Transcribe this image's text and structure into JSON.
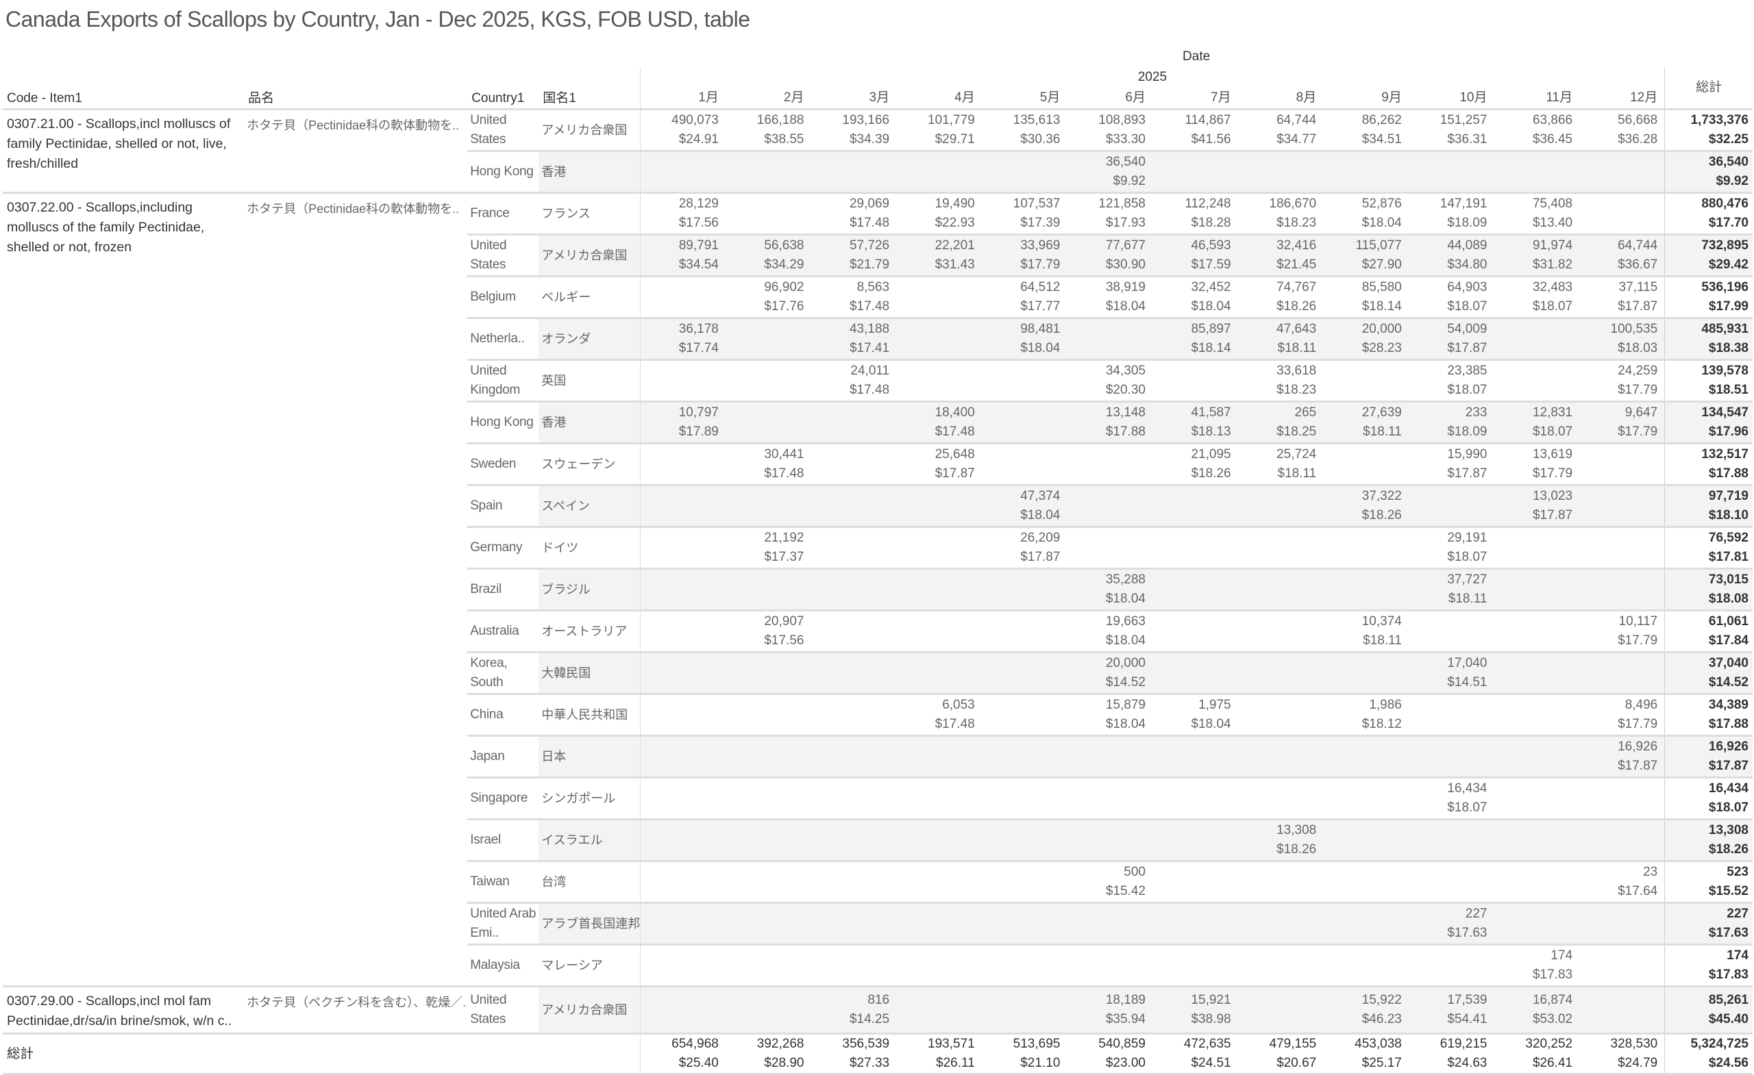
{
  "title": "Canada Exports of Scallops by Country, Jan - Dec 2025, KGS, FOB USD, table",
  "header": {
    "date_label": "Date",
    "year": "2025",
    "code_label": "Code - Item1",
    "name_ja_label": "品名",
    "country_label": "Country1",
    "country_ja_label": "国名1",
    "months": [
      "1月",
      "2月",
      "3月",
      "4月",
      "5月",
      "6月",
      "7月",
      "8月",
      "9月",
      "10月",
      "11月",
      "12月"
    ],
    "total_label": "総計"
  },
  "colors": {
    "row_shade": "#f3f3f3",
    "divider": "#dddddd",
    "text": "#666666",
    "total_text": "#333333"
  },
  "items": [
    {
      "code": "0307.21.00 - Scallops,incl molluscs of family Pectinidae, shelled or not, live, fresh/chilled",
      "name_ja": "ホタテ貝（Pectinidae科の軟体動物を..",
      "rows": [
        {
          "country": "United States",
          "country_ja": "アメリカ合衆国",
          "months": [
            [
              "490,073",
              "$24.91"
            ],
            [
              "166,188",
              "$38.55"
            ],
            [
              "193,166",
              "$34.39"
            ],
            [
              "101,779",
              "$29.71"
            ],
            [
              "135,613",
              "$30.36"
            ],
            [
              "108,893",
              "$33.30"
            ],
            [
              "114,867",
              "$41.56"
            ],
            [
              "64,744",
              "$34.77"
            ],
            [
              "86,262",
              "$34.51"
            ],
            [
              "151,257",
              "$36.31"
            ],
            [
              "63,866",
              "$36.45"
            ],
            [
              "56,668",
              "$36.28"
            ]
          ],
          "total": [
            "1,733,376",
            "$32.25"
          ]
        },
        {
          "country": "Hong Kong",
          "country_ja": "香港",
          "months": [
            null,
            null,
            null,
            null,
            null,
            [
              "36,540",
              "$9.92"
            ],
            null,
            null,
            null,
            null,
            null,
            null
          ],
          "total": [
            "36,540",
            "$9.92"
          ]
        }
      ]
    },
    {
      "code": "0307.22.00 - Scallops,including molluscs of the family Pectinidae, shelled or not, frozen",
      "name_ja": "ホタテ貝（Pectinidae科の軟体動物を..",
      "rows": [
        {
          "country": "France",
          "country_ja": "フランス",
          "months": [
            [
              "28,129",
              "$17.56"
            ],
            null,
            [
              "29,069",
              "$17.48"
            ],
            [
              "19,490",
              "$22.93"
            ],
            [
              "107,537",
              "$17.39"
            ],
            [
              "121,858",
              "$17.93"
            ],
            [
              "112,248",
              "$18.28"
            ],
            [
              "186,670",
              "$18.23"
            ],
            [
              "52,876",
              "$18.04"
            ],
            [
              "147,191",
              "$18.09"
            ],
            [
              "75,408",
              "$13.40"
            ],
            null
          ],
          "total": [
            "880,476",
            "$17.70"
          ]
        },
        {
          "country": "United States",
          "country_ja": "アメリカ合衆国",
          "months": [
            [
              "89,791",
              "$34.54"
            ],
            [
              "56,638",
              "$34.29"
            ],
            [
              "57,726",
              "$21.79"
            ],
            [
              "22,201",
              "$31.43"
            ],
            [
              "33,969",
              "$17.79"
            ],
            [
              "77,677",
              "$30.90"
            ],
            [
              "46,593",
              "$17.59"
            ],
            [
              "32,416",
              "$21.45"
            ],
            [
              "115,077",
              "$27.90"
            ],
            [
              "44,089",
              "$34.80"
            ],
            [
              "91,974",
              "$31.82"
            ],
            [
              "64,744",
              "$36.67"
            ]
          ],
          "total": [
            "732,895",
            "$29.42"
          ]
        },
        {
          "country": "Belgium",
          "country_ja": "ベルギー",
          "months": [
            null,
            [
              "96,902",
              "$17.76"
            ],
            [
              "8,563",
              "$17.48"
            ],
            null,
            [
              "64,512",
              "$17.77"
            ],
            [
              "38,919",
              "$18.04"
            ],
            [
              "32,452",
              "$18.04"
            ],
            [
              "74,767",
              "$18.26"
            ],
            [
              "85,580",
              "$18.14"
            ],
            [
              "64,903",
              "$18.07"
            ],
            [
              "32,483",
              "$18.07"
            ],
            [
              "37,115",
              "$17.87"
            ]
          ],
          "total": [
            "536,196",
            "$17.99"
          ]
        },
        {
          "country": "Netherla..",
          "country_ja": "オランダ",
          "months": [
            [
              "36,178",
              "$17.74"
            ],
            null,
            [
              "43,188",
              "$17.41"
            ],
            null,
            [
              "98,481",
              "$18.04"
            ],
            null,
            [
              "85,897",
              "$18.14"
            ],
            [
              "47,643",
              "$18.11"
            ],
            [
              "20,000",
              "$28.23"
            ],
            [
              "54,009",
              "$17.87"
            ],
            null,
            [
              "100,535",
              "$18.03"
            ]
          ],
          "total": [
            "485,931",
            "$18.38"
          ]
        },
        {
          "country": "United Kingdom",
          "country_ja": "英国",
          "months": [
            null,
            null,
            [
              "24,011",
              "$17.48"
            ],
            null,
            null,
            [
              "34,305",
              "$20.30"
            ],
            null,
            [
              "33,618",
              "$18.23"
            ],
            null,
            [
              "23,385",
              "$18.07"
            ],
            null,
            [
              "24,259",
              "$17.79"
            ]
          ],
          "total": [
            "139,578",
            "$18.51"
          ]
        },
        {
          "country": "Hong Kong",
          "country_ja": "香港",
          "months": [
            [
              "10,797",
              "$17.89"
            ],
            null,
            null,
            [
              "18,400",
              "$17.48"
            ],
            null,
            [
              "13,148",
              "$17.88"
            ],
            [
              "41,587",
              "$18.13"
            ],
            [
              "265",
              "$18.25"
            ],
            [
              "27,639",
              "$18.11"
            ],
            [
              "233",
              "$18.09"
            ],
            [
              "12,831",
              "$18.07"
            ],
            [
              "9,647",
              "$17.79"
            ]
          ],
          "total": [
            "134,547",
            "$17.96"
          ]
        },
        {
          "country": "Sweden",
          "country_ja": "スウェーデン",
          "months": [
            null,
            [
              "30,441",
              "$17.48"
            ],
            null,
            [
              "25,648",
              "$17.87"
            ],
            null,
            null,
            [
              "21,095",
              "$18.26"
            ],
            [
              "25,724",
              "$18.11"
            ],
            null,
            [
              "15,990",
              "$17.87"
            ],
            [
              "13,619",
              "$17.79"
            ],
            null
          ],
          "total": [
            "132,517",
            "$17.88"
          ]
        },
        {
          "country": "Spain",
          "country_ja": "スペイン",
          "months": [
            null,
            null,
            null,
            null,
            [
              "47,374",
              "$18.04"
            ],
            null,
            null,
            null,
            [
              "37,322",
              "$18.26"
            ],
            null,
            [
              "13,023",
              "$17.87"
            ],
            null
          ],
          "total": [
            "97,719",
            "$18.10"
          ]
        },
        {
          "country": "Germany",
          "country_ja": "ドイツ",
          "months": [
            null,
            [
              "21,192",
              "$17.37"
            ],
            null,
            null,
            [
              "26,209",
              "$17.87"
            ],
            null,
            null,
            null,
            null,
            [
              "29,191",
              "$18.07"
            ],
            null,
            null
          ],
          "total": [
            "76,592",
            "$17.81"
          ]
        },
        {
          "country": "Brazil",
          "country_ja": "ブラジル",
          "months": [
            null,
            null,
            null,
            null,
            null,
            [
              "35,288",
              "$18.04"
            ],
            null,
            null,
            null,
            [
              "37,727",
              "$18.11"
            ],
            null,
            null
          ],
          "total": [
            "73,015",
            "$18.08"
          ]
        },
        {
          "country": "Australia",
          "country_ja": "オーストラリア",
          "months": [
            null,
            [
              "20,907",
              "$17.56"
            ],
            null,
            null,
            null,
            [
              "19,663",
              "$18.04"
            ],
            null,
            null,
            [
              "10,374",
              "$18.11"
            ],
            null,
            null,
            [
              "10,117",
              "$17.79"
            ]
          ],
          "total": [
            "61,061",
            "$17.84"
          ]
        },
        {
          "country": "Korea, South",
          "country_ja": "大韓民国",
          "months": [
            null,
            null,
            null,
            null,
            null,
            [
              "20,000",
              "$14.52"
            ],
            null,
            null,
            null,
            [
              "17,040",
              "$14.51"
            ],
            null,
            null
          ],
          "total": [
            "37,040",
            "$14.52"
          ]
        },
        {
          "country": "China",
          "country_ja": "中華人民共和国",
          "months": [
            null,
            null,
            null,
            [
              "6,053",
              "$17.48"
            ],
            null,
            [
              "15,879",
              "$18.04"
            ],
            [
              "1,975",
              "$18.04"
            ],
            null,
            [
              "1,986",
              "$18.12"
            ],
            null,
            null,
            [
              "8,496",
              "$17.79"
            ]
          ],
          "total": [
            "34,389",
            "$17.88"
          ]
        },
        {
          "country": "Japan",
          "country_ja": "日本",
          "months": [
            null,
            null,
            null,
            null,
            null,
            null,
            null,
            null,
            null,
            null,
            null,
            [
              "16,926",
              "$17.87"
            ]
          ],
          "total": [
            "16,926",
            "$17.87"
          ]
        },
        {
          "country": "Singapore",
          "country_ja": "シンガポール",
          "months": [
            null,
            null,
            null,
            null,
            null,
            null,
            null,
            null,
            null,
            [
              "16,434",
              "$18.07"
            ],
            null,
            null
          ],
          "total": [
            "16,434",
            "$18.07"
          ]
        },
        {
          "country": "Israel",
          "country_ja": "イスラエル",
          "months": [
            null,
            null,
            null,
            null,
            null,
            null,
            null,
            [
              "13,308",
              "$18.26"
            ],
            null,
            null,
            null,
            null
          ],
          "total": [
            "13,308",
            "$18.26"
          ]
        },
        {
          "country": "Taiwan",
          "country_ja": "台湾",
          "months": [
            null,
            null,
            null,
            null,
            null,
            [
              "500",
              "$15.42"
            ],
            null,
            null,
            null,
            null,
            null,
            [
              "23",
              "$17.64"
            ]
          ],
          "total": [
            "523",
            "$15.52"
          ]
        },
        {
          "country": "United Arab Emi..",
          "country_ja": "アラブ首長国連邦",
          "months": [
            null,
            null,
            null,
            null,
            null,
            null,
            null,
            null,
            null,
            [
              "227",
              "$17.63"
            ],
            null,
            null
          ],
          "total": [
            "227",
            "$17.63"
          ]
        },
        {
          "country": "Malaysia",
          "country_ja": "マレーシア",
          "months": [
            null,
            null,
            null,
            null,
            null,
            null,
            null,
            null,
            null,
            null,
            [
              "174",
              "$17.83"
            ],
            null
          ],
          "total": [
            "174",
            "$17.83"
          ]
        }
      ]
    },
    {
      "code": "0307.29.00 - Scallops,incl mol fam Pectinidae,dr/sa/in brine/smok, w/n c..",
      "name_ja": "ホタテ貝（ペクチン科を含む）、乾燥／..",
      "rows": [
        {
          "country": "United States",
          "country_ja": "アメリカ合衆国",
          "months": [
            null,
            null,
            [
              "816",
              "$14.25"
            ],
            null,
            null,
            [
              "18,189",
              "$35.94"
            ],
            [
              "15,921",
              "$38.98"
            ],
            null,
            [
              "15,922",
              "$46.23"
            ],
            [
              "17,539",
              "$54.41"
            ],
            [
              "16,874",
              "$53.02"
            ],
            null
          ],
          "total": [
            "85,261",
            "$45.40"
          ]
        }
      ]
    }
  ],
  "grand_total": {
    "label": "総計",
    "months": [
      [
        "654,968",
        "$25.40"
      ],
      [
        "392,268",
        "$28.90"
      ],
      [
        "356,539",
        "$27.33"
      ],
      [
        "193,571",
        "$26.11"
      ],
      [
        "513,695",
        "$21.10"
      ],
      [
        "540,859",
        "$23.00"
      ],
      [
        "472,635",
        "$24.51"
      ],
      [
        "479,155",
        "$20.67"
      ],
      [
        "453,038",
        "$25.17"
      ],
      [
        "619,215",
        "$24.63"
      ],
      [
        "320,252",
        "$26.41"
      ],
      [
        "328,530",
        "$24.79"
      ]
    ],
    "total": [
      "5,324,725",
      "$24.56"
    ]
  }
}
